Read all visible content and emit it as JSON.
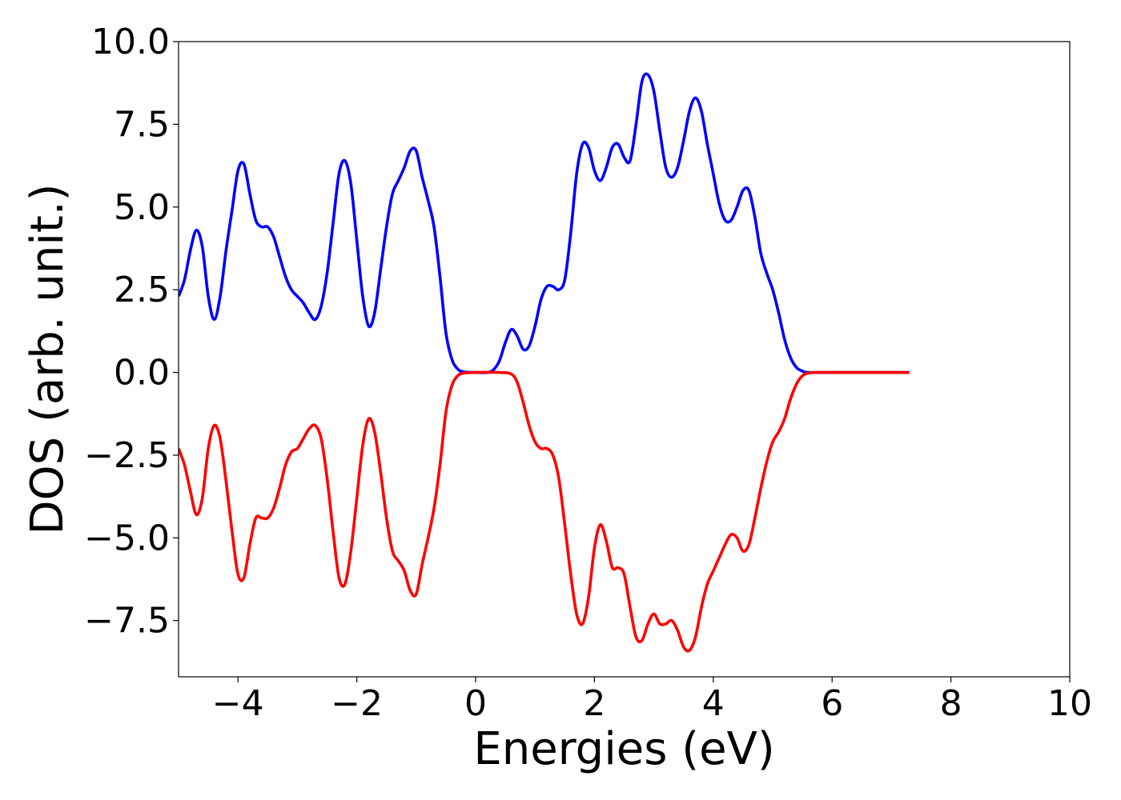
{
  "chart_data": {
    "type": "line",
    "title": "",
    "xlabel": "Energies (eV)",
    "ylabel": "DOS (arb. unit.)",
    "xlim": [
      -5,
      10
    ],
    "ylim": [
      -9.2,
      10.0
    ],
    "grid": false,
    "legend": "none",
    "x_ticks": [
      {
        "value": -4,
        "label": "−4"
      },
      {
        "value": -2,
        "label": "−2"
      },
      {
        "value": 0,
        "label": "0"
      },
      {
        "value": 2,
        "label": "2"
      },
      {
        "value": 4,
        "label": "4"
      },
      {
        "value": 6,
        "label": "6"
      },
      {
        "value": 8,
        "label": "8"
      },
      {
        "value": 10,
        "label": "10"
      }
    ],
    "y_ticks": [
      {
        "value": -7.5,
        "label": "−7.5"
      },
      {
        "value": -5.0,
        "label": "−5.0"
      },
      {
        "value": -2.5,
        "label": "−2.5"
      },
      {
        "value": 0.0,
        "label": "0.0"
      },
      {
        "value": 2.5,
        "label": "2.5"
      },
      {
        "value": 5.0,
        "label": "5.0"
      },
      {
        "value": 7.5,
        "label": "7.5"
      },
      {
        "value": 10.0,
        "label": "10.0"
      }
    ],
    "series": [
      {
        "color": "#0000ff",
        "points": [
          [
            -5.0,
            2.3
          ],
          [
            -4.9,
            2.8
          ],
          [
            -4.8,
            3.7
          ],
          [
            -4.7,
            4.3
          ],
          [
            -4.6,
            3.8
          ],
          [
            -4.5,
            2.3
          ],
          [
            -4.4,
            1.6
          ],
          [
            -4.3,
            2.3
          ],
          [
            -4.2,
            3.7
          ],
          [
            -4.1,
            4.9
          ],
          [
            -4.0,
            6.1
          ],
          [
            -3.9,
            6.3
          ],
          [
            -3.8,
            5.4
          ],
          [
            -3.7,
            4.6
          ],
          [
            -3.6,
            4.4
          ],
          [
            -3.5,
            4.4
          ],
          [
            -3.4,
            4.1
          ],
          [
            -3.3,
            3.5
          ],
          [
            -3.2,
            2.9
          ],
          [
            -3.1,
            2.5
          ],
          [
            -3.0,
            2.3
          ],
          [
            -2.9,
            2.1
          ],
          [
            -2.8,
            1.8
          ],
          [
            -2.7,
            1.6
          ],
          [
            -2.6,
            2.0
          ],
          [
            -2.5,
            3.0
          ],
          [
            -2.4,
            4.5
          ],
          [
            -2.3,
            6.0
          ],
          [
            -2.2,
            6.4
          ],
          [
            -2.1,
            5.7
          ],
          [
            -2.0,
            4.0
          ],
          [
            -1.9,
            2.3
          ],
          [
            -1.8,
            1.4
          ],
          [
            -1.7,
            1.8
          ],
          [
            -1.6,
            3.1
          ],
          [
            -1.5,
            4.4
          ],
          [
            -1.4,
            5.4
          ],
          [
            -1.3,
            5.8
          ],
          [
            -1.2,
            6.2
          ],
          [
            -1.1,
            6.7
          ],
          [
            -1.0,
            6.7
          ],
          [
            -0.9,
            5.9
          ],
          [
            -0.8,
            5.2
          ],
          [
            -0.7,
            4.4
          ],
          [
            -0.6,
            2.9
          ],
          [
            -0.5,
            1.2
          ],
          [
            -0.4,
            0.4
          ],
          [
            -0.3,
            0.1
          ],
          [
            -0.2,
            0.02
          ],
          [
            0.0,
            0.0
          ],
          [
            0.2,
            0.0
          ],
          [
            0.3,
            0.08
          ],
          [
            0.4,
            0.35
          ],
          [
            0.5,
            0.9
          ],
          [
            0.6,
            1.3
          ],
          [
            0.7,
            1.1
          ],
          [
            0.8,
            0.7
          ],
          [
            0.9,
            0.8
          ],
          [
            1.0,
            1.4
          ],
          [
            1.1,
            2.2
          ],
          [
            1.2,
            2.6
          ],
          [
            1.3,
            2.6
          ],
          [
            1.4,
            2.5
          ],
          [
            1.5,
            2.8
          ],
          [
            1.6,
            4.2
          ],
          [
            1.7,
            6.0
          ],
          [
            1.8,
            6.9
          ],
          [
            1.9,
            6.8
          ],
          [
            2.0,
            6.1
          ],
          [
            2.1,
            5.8
          ],
          [
            2.2,
            6.2
          ],
          [
            2.3,
            6.8
          ],
          [
            2.4,
            6.9
          ],
          [
            2.5,
            6.5
          ],
          [
            2.6,
            6.4
          ],
          [
            2.7,
            7.5
          ],
          [
            2.8,
            8.8
          ],
          [
            2.9,
            9.0
          ],
          [
            3.0,
            8.5
          ],
          [
            3.1,
            7.3
          ],
          [
            3.2,
            6.2
          ],
          [
            3.3,
            5.9
          ],
          [
            3.4,
            6.2
          ],
          [
            3.5,
            7.0
          ],
          [
            3.6,
            7.9
          ],
          [
            3.7,
            8.3
          ],
          [
            3.8,
            7.9
          ],
          [
            3.9,
            6.9
          ],
          [
            4.0,
            6.0
          ],
          [
            4.1,
            5.1
          ],
          [
            4.2,
            4.6
          ],
          [
            4.3,
            4.6
          ],
          [
            4.4,
            5.0
          ],
          [
            4.5,
            5.5
          ],
          [
            4.6,
            5.5
          ],
          [
            4.7,
            4.7
          ],
          [
            4.8,
            3.6
          ],
          [
            4.9,
            3.0
          ],
          [
            5.0,
            2.5
          ],
          [
            5.1,
            1.8
          ],
          [
            5.2,
            1.0
          ],
          [
            5.3,
            0.45
          ],
          [
            5.4,
            0.15
          ],
          [
            5.5,
            0.04
          ],
          [
            5.6,
            0.0
          ],
          [
            6.0,
            0.0
          ],
          [
            7.3,
            0.0
          ]
        ]
      },
      {
        "color": "#ff0000",
        "points": [
          [
            -5.0,
            -2.3
          ],
          [
            -4.9,
            -2.8
          ],
          [
            -4.8,
            -3.6
          ],
          [
            -4.7,
            -4.3
          ],
          [
            -4.6,
            -3.8
          ],
          [
            -4.5,
            -2.3
          ],
          [
            -4.4,
            -1.6
          ],
          [
            -4.3,
            -2.0
          ],
          [
            -4.2,
            -3.3
          ],
          [
            -4.1,
            -4.8
          ],
          [
            -4.0,
            -6.1
          ],
          [
            -3.9,
            -6.2
          ],
          [
            -3.8,
            -5.2
          ],
          [
            -3.7,
            -4.4
          ],
          [
            -3.6,
            -4.4
          ],
          [
            -3.5,
            -4.4
          ],
          [
            -3.4,
            -4.1
          ],
          [
            -3.3,
            -3.5
          ],
          [
            -3.2,
            -2.8
          ],
          [
            -3.1,
            -2.4
          ],
          [
            -3.0,
            -2.3
          ],
          [
            -2.9,
            -2.0
          ],
          [
            -2.8,
            -1.7
          ],
          [
            -2.7,
            -1.6
          ],
          [
            -2.6,
            -2.0
          ],
          [
            -2.5,
            -3.2
          ],
          [
            -2.4,
            -4.8
          ],
          [
            -2.3,
            -6.2
          ],
          [
            -2.2,
            -6.4
          ],
          [
            -2.1,
            -5.4
          ],
          [
            -2.0,
            -3.8
          ],
          [
            -1.9,
            -2.2
          ],
          [
            -1.8,
            -1.4
          ],
          [
            -1.7,
            -1.8
          ],
          [
            -1.6,
            -3.0
          ],
          [
            -1.5,
            -4.4
          ],
          [
            -1.4,
            -5.4
          ],
          [
            -1.3,
            -5.7
          ],
          [
            -1.2,
            -6.0
          ],
          [
            -1.1,
            -6.6
          ],
          [
            -1.0,
            -6.7
          ],
          [
            -0.9,
            -5.8
          ],
          [
            -0.8,
            -5.0
          ],
          [
            -0.7,
            -4.1
          ],
          [
            -0.6,
            -2.8
          ],
          [
            -0.5,
            -1.2
          ],
          [
            -0.4,
            -0.4
          ],
          [
            -0.3,
            -0.1
          ],
          [
            -0.2,
            -0.02
          ],
          [
            0.0,
            0.0
          ],
          [
            0.4,
            0.0
          ],
          [
            0.6,
            -0.05
          ],
          [
            0.7,
            -0.3
          ],
          [
            0.8,
            -0.9
          ],
          [
            0.9,
            -1.6
          ],
          [
            1.0,
            -2.1
          ],
          [
            1.1,
            -2.3
          ],
          [
            1.2,
            -2.3
          ],
          [
            1.3,
            -2.5
          ],
          [
            1.4,
            -3.2
          ],
          [
            1.5,
            -4.6
          ],
          [
            1.6,
            -6.1
          ],
          [
            1.7,
            -7.3
          ],
          [
            1.8,
            -7.6
          ],
          [
            1.9,
            -6.8
          ],
          [
            2.0,
            -5.3
          ],
          [
            2.1,
            -4.6
          ],
          [
            2.2,
            -5.1
          ],
          [
            2.3,
            -5.9
          ],
          [
            2.4,
            -5.9
          ],
          [
            2.5,
            -6.1
          ],
          [
            2.6,
            -7.1
          ],
          [
            2.7,
            -8.0
          ],
          [
            2.8,
            -8.1
          ],
          [
            2.9,
            -7.6
          ],
          [
            3.0,
            -7.3
          ],
          [
            3.1,
            -7.6
          ],
          [
            3.2,
            -7.6
          ],
          [
            3.3,
            -7.5
          ],
          [
            3.4,
            -7.8
          ],
          [
            3.5,
            -8.3
          ],
          [
            3.6,
            -8.4
          ],
          [
            3.7,
            -8.0
          ],
          [
            3.8,
            -7.1
          ],
          [
            3.9,
            -6.4
          ],
          [
            4.0,
            -6.0
          ],
          [
            4.1,
            -5.6
          ],
          [
            4.2,
            -5.2
          ],
          [
            4.3,
            -4.9
          ],
          [
            4.4,
            -5.0
          ],
          [
            4.5,
            -5.4
          ],
          [
            4.6,
            -5.2
          ],
          [
            4.7,
            -4.4
          ],
          [
            4.8,
            -3.5
          ],
          [
            4.9,
            -2.7
          ],
          [
            5.0,
            -2.1
          ],
          [
            5.1,
            -1.8
          ],
          [
            5.2,
            -1.4
          ],
          [
            5.3,
            -0.8
          ],
          [
            5.4,
            -0.35
          ],
          [
            5.5,
            -0.1
          ],
          [
            5.6,
            -0.02
          ],
          [
            5.7,
            0.0
          ],
          [
            6.0,
            0.0
          ],
          [
            7.3,
            0.0
          ]
        ]
      }
    ]
  }
}
